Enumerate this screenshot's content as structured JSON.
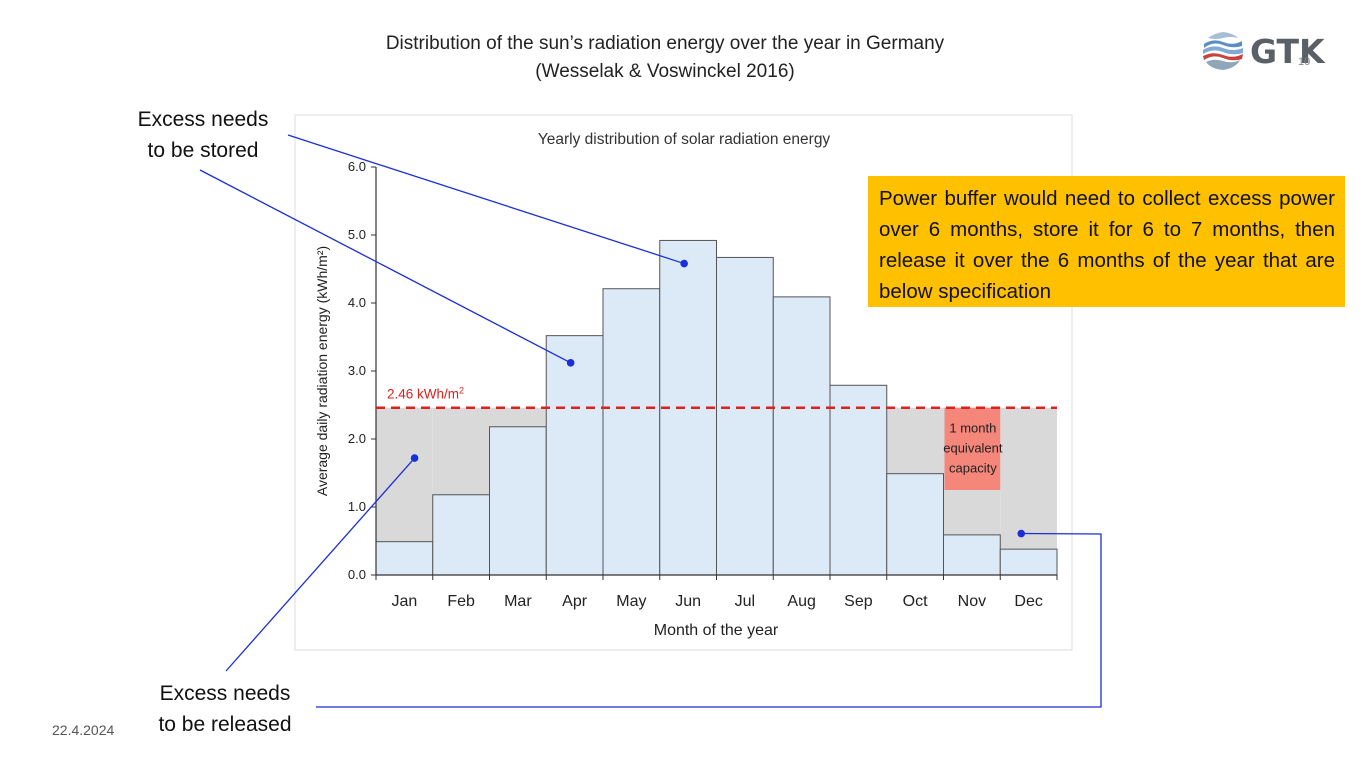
{
  "slide": {
    "title_line1": "Distribution of the sun’s radiation energy over the year in Germany",
    "title_line2": "(Wesselak & Voswinckel 2016)",
    "logo_text": "GTK",
    "slide_number": "10",
    "date": "22.4.2024",
    "callout_stored_line1": "Excess needs",
    "callout_stored_line2": "to be stored",
    "callout_released_line1": "Excess needs",
    "callout_released_line2": "to be released",
    "info_box_text": "Power buffer would need to collect excess power over 6 months, store it for 6 to 7 months, then release it over the 6 months of the year that are below specification",
    "colors": {
      "bar_fill": "#dce9f7",
      "bar_stroke": "#555555",
      "deficit_fill": "#d9d9d9",
      "threshold": "#e0201c",
      "capacity_box": "#f4867a",
      "callout_line": "#1a2fd8",
      "info_box": "#ffc000"
    },
    "icons": [
      "gtk-wave-logo-icon"
    ]
  },
  "chart_data": {
    "type": "bar",
    "title": "Yearly distribution of solar radiation energy",
    "xlabel": "Month of the year",
    "ylabel": "Average daily radiation energy (kWh/m²)",
    "ylim": [
      0,
      6
    ],
    "yticks": [
      "0.0",
      "1.0",
      "2.0",
      "3.0",
      "4.0",
      "5.0",
      "6.0"
    ],
    "ytick_values": [
      0,
      1,
      2,
      3,
      4,
      5,
      6
    ],
    "categories": [
      "Jan",
      "Feb",
      "Mar",
      "Apr",
      "May",
      "Jun",
      "Jul",
      "Aug",
      "Sep",
      "Oct",
      "Nov",
      "Dec"
    ],
    "values": [
      0.49,
      1.18,
      2.18,
      3.52,
      4.21,
      4.92,
      4.67,
      4.09,
      2.79,
      1.49,
      0.59,
      0.38
    ],
    "threshold": {
      "value": 2.46,
      "label": "2.46 kWh/m",
      "label_sup": "2"
    },
    "capacity_annotation": {
      "lines": [
        "1 month",
        "equivalent",
        "capacity"
      ],
      "month_index": 10,
      "y_range": [
        1.25,
        2.46
      ]
    },
    "legend": "none",
    "grid": false
  }
}
